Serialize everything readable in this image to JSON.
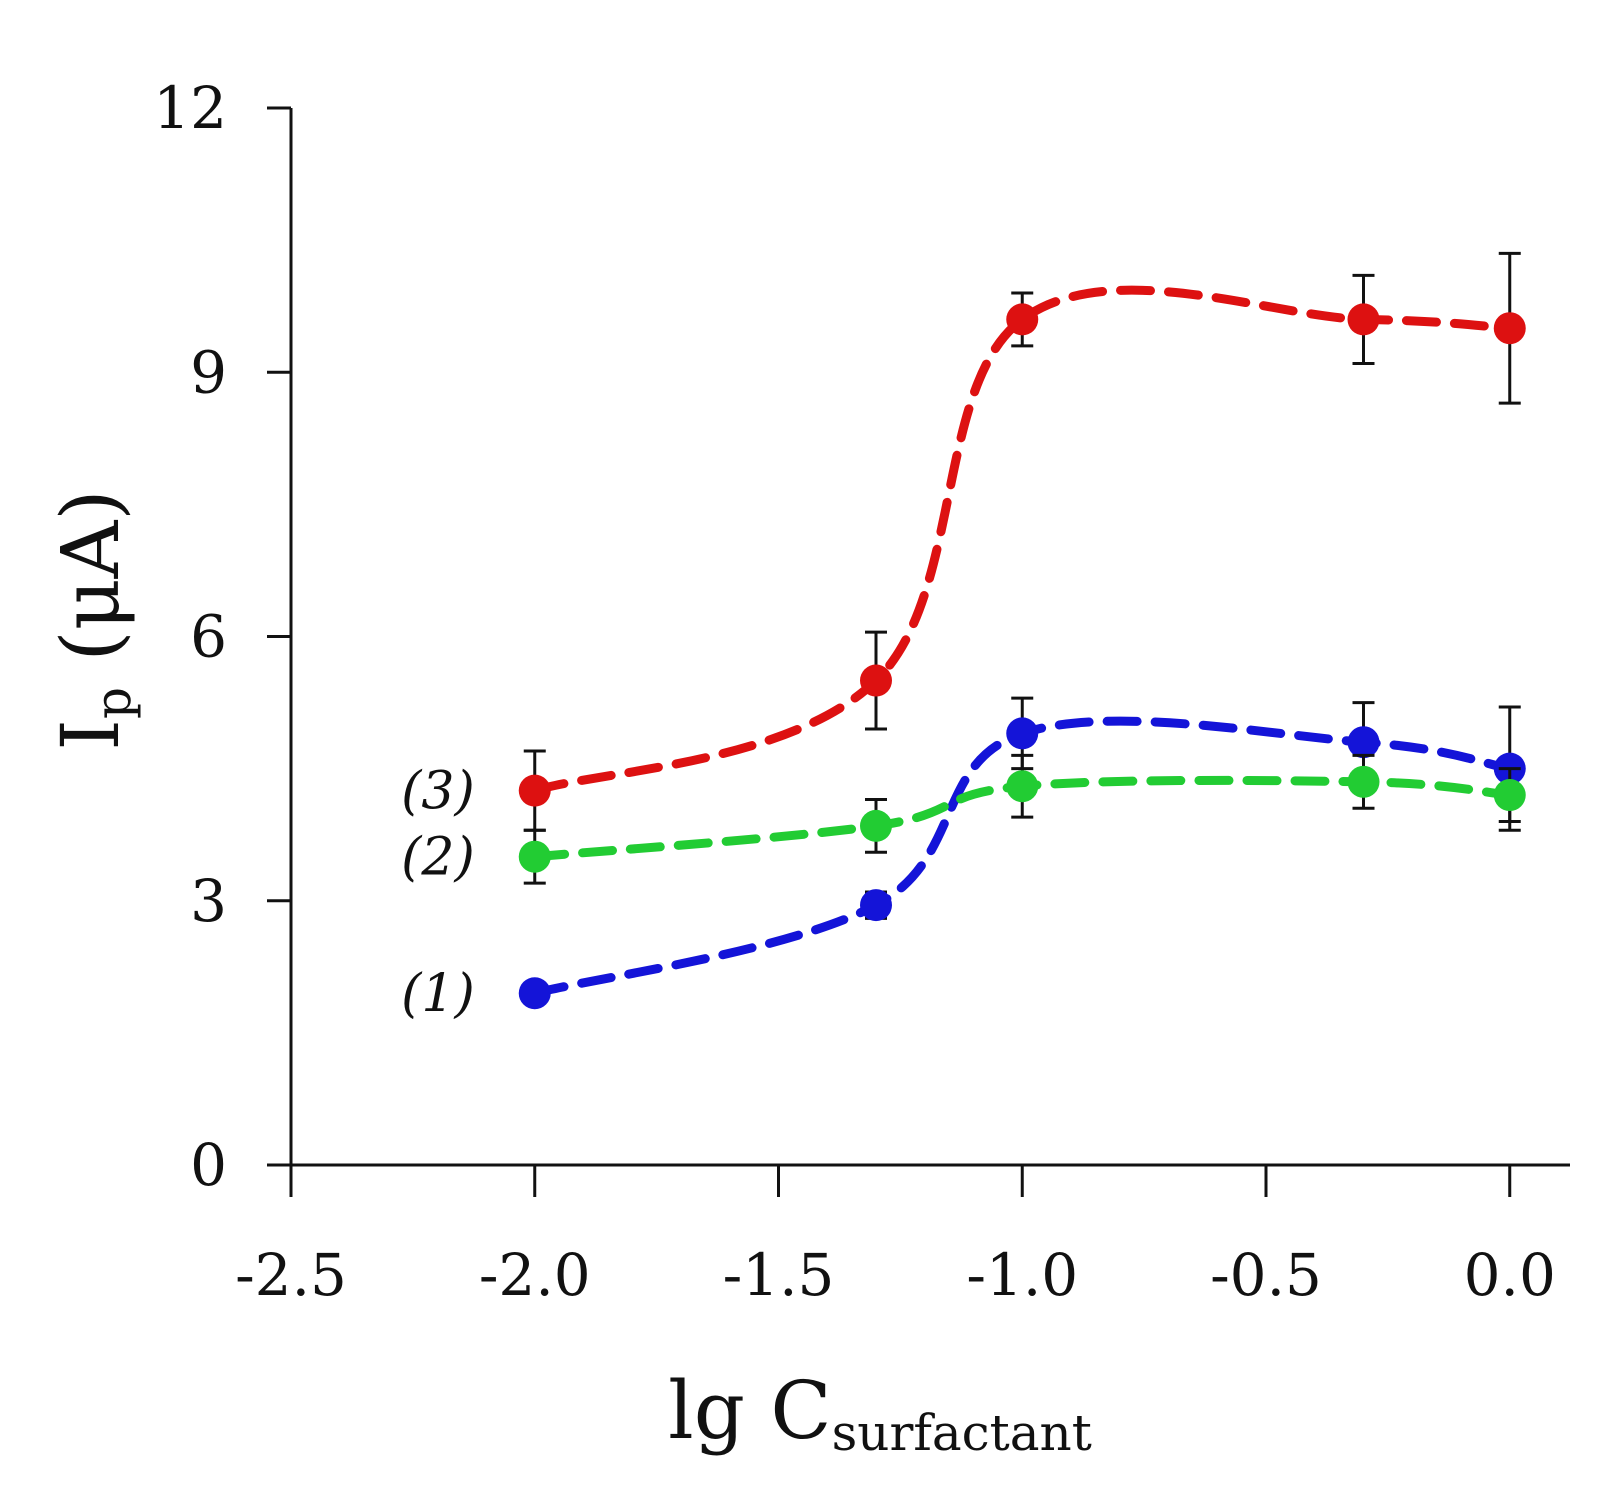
{
  "chart_data": {
    "type": "line",
    "title": "",
    "xlabel": {
      "main": "lg C",
      "sub": "surfactant"
    },
    "ylabel": {
      "main": "I",
      "sub": "p",
      "unit": " (μA)"
    },
    "xlim": [
      -2.5,
      0.1
    ],
    "ylim": [
      0,
      12
    ],
    "xticks": [
      -2.5,
      -2.0,
      -1.5,
      -1.0,
      -0.5,
      0.0
    ],
    "xtick_labels": [
      "-2.5",
      "-2.0",
      "-1.5",
      "-1.0",
      "-0.5",
      "0.0"
    ],
    "yticks": [
      0,
      3,
      6,
      9,
      12
    ],
    "ytick_labels": [
      "0",
      "3",
      "6",
      "9",
      "12"
    ],
    "grid": false,
    "legend": "inline labels at left of each series",
    "series": [
      {
        "name": "(1)",
        "color": "#1414d8",
        "x": [
          -2.0,
          -1.3,
          -1.0,
          -0.3,
          0.0
        ],
        "y": [
          1.95,
          2.95,
          4.9,
          4.8,
          4.5
        ],
        "err": [
          0,
          0.15,
          0.4,
          0.45,
          0.7
        ]
      },
      {
        "name": "(2)",
        "color": "#22cc33",
        "x": [
          -2.0,
          -1.3,
          -1.0,
          -0.3,
          0.0
        ],
        "y": [
          3.5,
          3.85,
          4.3,
          4.35,
          4.2
        ],
        "err": [
          0.3,
          0.3,
          0.35,
          0.3,
          0.3
        ]
      },
      {
        "name": "(3)",
        "color": "#dd1111",
        "x": [
          -2.0,
          -1.3,
          -1.0,
          -0.3,
          0.0
        ],
        "y": [
          4.25,
          5.5,
          9.6,
          9.6,
          9.5
        ],
        "err": [
          0.45,
          0.55,
          0.3,
          0.5,
          0.85
        ]
      }
    ]
  }
}
